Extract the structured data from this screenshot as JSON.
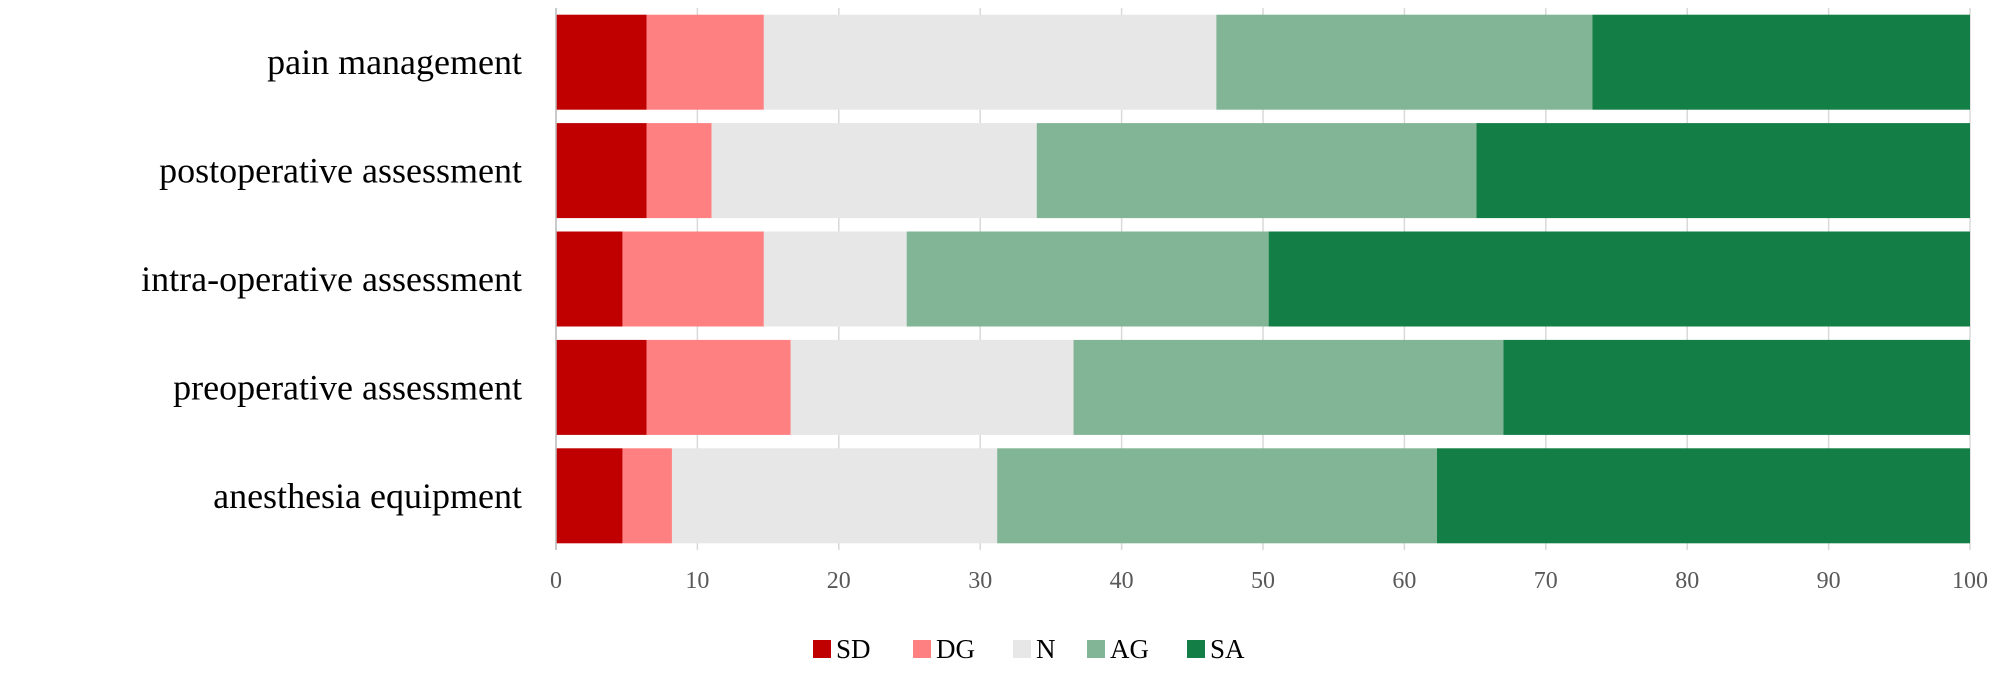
{
  "chart_data": {
    "type": "bar",
    "orientation": "horizontal",
    "stacked": true,
    "title": "",
    "xlabel": "",
    "ylabel": "",
    "xlim": [
      0,
      100
    ],
    "x_ticks": [
      0,
      10,
      20,
      30,
      40,
      50,
      60,
      70,
      80,
      90,
      100
    ],
    "grid": true,
    "legend_position": "bottom",
    "categories": [
      "pain management",
      "postoperative assessment",
      "intra-operative assessment",
      "preoperative assessment",
      "anesthesia equipment"
    ],
    "series": [
      {
        "name": "SD",
        "color": "#c00000",
        "values": [
          6.4,
          6.4,
          4.7,
          6.4,
          4.7
        ]
      },
      {
        "name": "DG",
        "color": "#ff8080",
        "values": [
          8.3,
          4.6,
          10.0,
          10.2,
          3.5
        ]
      },
      {
        "name": "N",
        "color": "#e7e7e7",
        "values": [
          32.0,
          23.0,
          10.1,
          20.0,
          23.0
        ]
      },
      {
        "name": "AG",
        "color": "#82b596",
        "values": [
          26.6,
          31.1,
          25.6,
          30.4,
          31.1
        ]
      },
      {
        "name": "SA",
        "color": "#137e45",
        "values": [
          26.7,
          34.9,
          49.6,
          33.0,
          37.7
        ]
      }
    ]
  }
}
